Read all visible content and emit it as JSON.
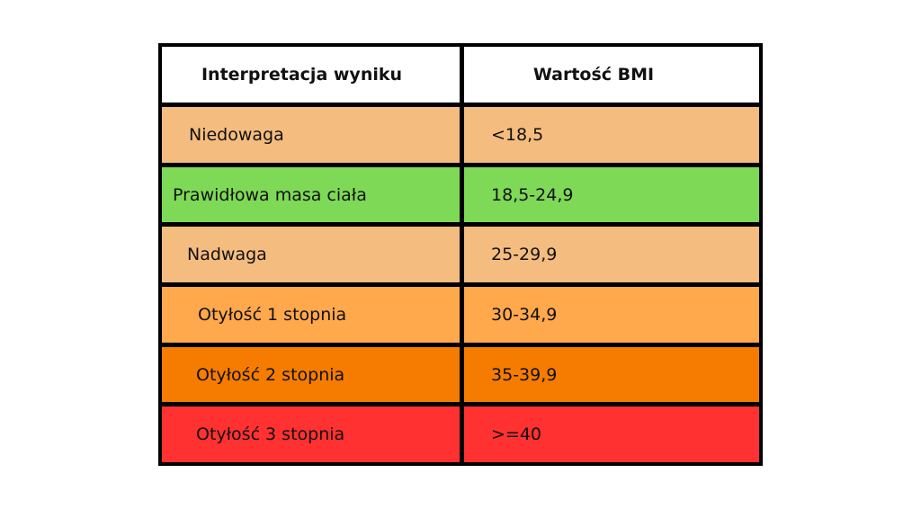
{
  "table": {
    "headers": [
      "Interpretacja wyniku",
      "Wartość BMI"
    ],
    "rows": [
      {
        "label": "Niedowaga",
        "value": "<18,5",
        "color": "#F4BC7F"
      },
      {
        "label": "Prawidłowa masa ciała",
        "value": "18,5-24,9",
        "color": "#7ED957"
      },
      {
        "label": "Nadwaga",
        "value": "25-29,9",
        "color": "#F4BC7F"
      },
      {
        "label": "Otyłość 1 stopnia",
        "value": "30-34,9",
        "color": "#FFA84C"
      },
      {
        "label": "Otyłość 2 stopnia",
        "value": "35-39,9",
        "color": "#F57C00"
      },
      {
        "label": "Otyłość 3 stopnia",
        "value": ">=40",
        "color": "#FF3131"
      }
    ]
  }
}
